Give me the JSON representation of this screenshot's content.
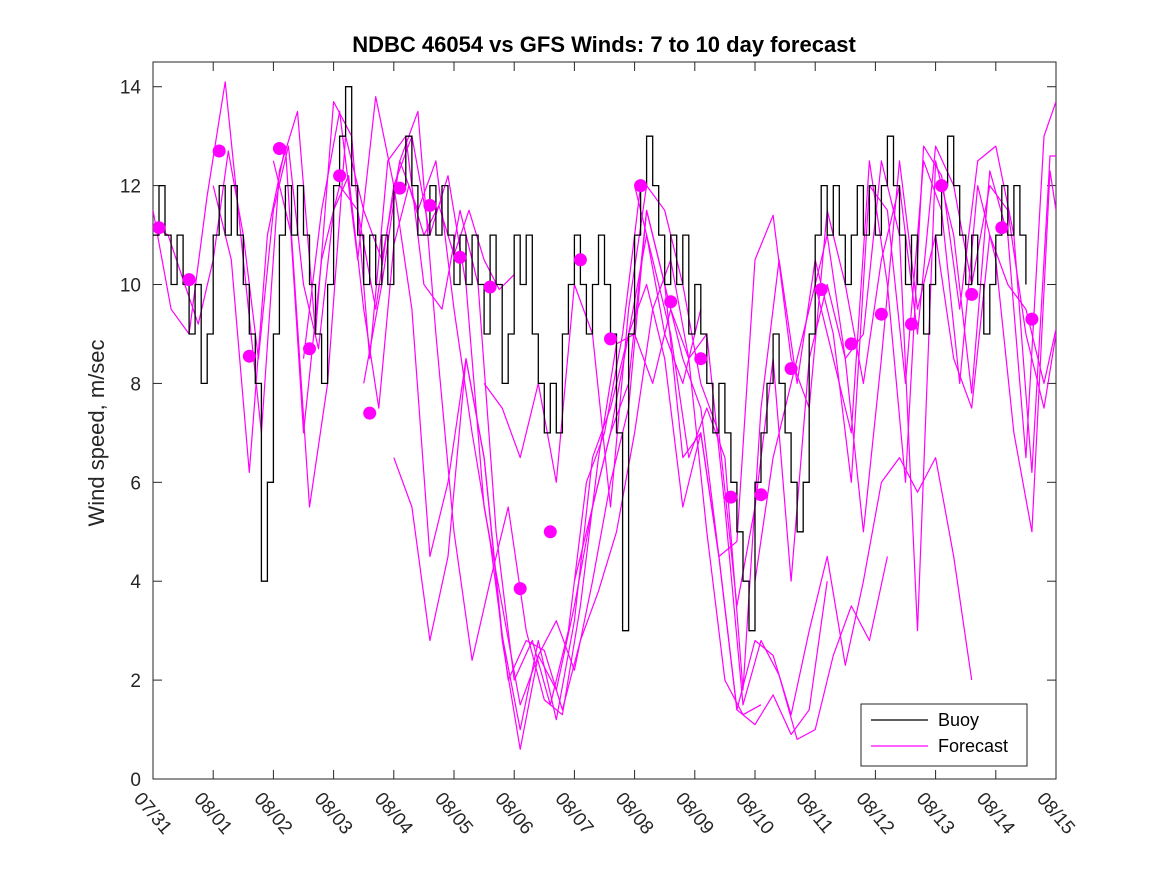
{
  "chart_data": {
    "type": "line",
    "title": "NDBC 46054 vs GFS Winds: 7 to 10 day forecast",
    "xlabel": "",
    "ylabel": "Wind speed, m/sec",
    "x_ticks": [
      "07/31",
      "08/01",
      "08/02",
      "08/03",
      "08/04",
      "08/05",
      "08/06",
      "08/07",
      "08/08",
      "08/09",
      "08/10",
      "08/11",
      "08/12",
      "08/13",
      "08/14",
      "08/15"
    ],
    "xlim": [
      "07/31",
      "08/15"
    ],
    "ylim": [
      0,
      14.5
    ],
    "y_ticks": [
      0,
      2,
      4,
      6,
      8,
      10,
      12,
      14
    ],
    "grid": false,
    "legend": {
      "position": "bottom-right",
      "entries": [
        "Buoy",
        "Forecast"
      ]
    },
    "colors": {
      "buoy": "#000000",
      "forecast": "#ff00ff"
    },
    "buoy": {
      "name": "Buoy",
      "x_days": [
        0,
        0.1,
        0.2,
        0.3,
        0.4,
        0.5,
        0.6,
        0.7,
        0.8,
        0.9,
        1.0,
        1.1,
        1.2,
        1.3,
        1.4,
        1.5,
        1.6,
        1.7,
        1.8,
        1.9,
        2.0,
        2.1,
        2.2,
        2.3,
        2.4,
        2.5,
        2.6,
        2.7,
        2.8,
        2.9,
        3.0,
        3.1,
        3.2,
        3.3,
        3.4,
        3.5,
        3.6,
        3.7,
        3.8,
        3.9,
        4.0,
        4.1,
        4.2,
        4.3,
        4.4,
        4.5,
        4.6,
        4.7,
        4.8,
        4.9,
        5.0,
        5.1,
        5.2,
        5.3,
        5.4,
        5.5,
        5.6,
        5.7,
        5.8,
        5.9,
        6.0,
        6.1,
        6.2,
        6.3,
        6.4,
        6.5,
        6.6,
        6.7,
        6.8,
        6.9,
        7.0,
        7.1,
        7.2,
        7.3,
        7.4,
        7.5,
        7.6,
        7.7,
        7.8,
        7.9,
        8.0,
        8.1,
        8.2,
        8.3,
        8.4,
        8.5,
        8.6,
        8.7,
        8.8,
        8.9,
        9.0,
        9.1,
        9.2,
        9.3,
        9.4,
        9.5,
        9.6,
        9.7,
        9.8,
        9.9,
        10.0,
        10.1,
        10.2,
        10.3,
        10.4,
        10.5,
        10.6,
        10.7,
        10.8,
        10.9,
        11.0,
        11.1,
        11.2,
        11.3,
        11.4,
        11.5,
        11.6,
        11.7,
        11.8,
        11.9,
        12.0,
        12.1,
        12.2,
        12.3,
        12.4,
        12.5,
        12.6,
        12.7,
        12.8,
        12.9,
        13.0,
        13.1,
        13.2,
        13.3,
        13.4,
        13.5,
        13.6,
        13.7,
        13.8,
        13.9,
        14.0,
        14.1,
        14.2,
        14.3,
        14.4,
        14.5,
        14.6,
        14.7,
        14.8,
        14.9,
        15.0
      ],
      "values": [
        11,
        12,
        11,
        10,
        11,
        10,
        9,
        10,
        8,
        9,
        11,
        12,
        11,
        12,
        11,
        10,
        9,
        8,
        4,
        6,
        9,
        11,
        12,
        11,
        12,
        11,
        10,
        9,
        8,
        10,
        12,
        13,
        14,
        12,
        11,
        10,
        11,
        10,
        11,
        10,
        12,
        12,
        13,
        12,
        11,
        11,
        12,
        11,
        12,
        11,
        10,
        11,
        10,
        11,
        10,
        9,
        11,
        10,
        8,
        9,
        11,
        10,
        11,
        9,
        8,
        7,
        8,
        7,
        9,
        10,
        11,
        10,
        9,
        10,
        11,
        10,
        9,
        7,
        3,
        9,
        11,
        12,
        13,
        12,
        11,
        10,
        11,
        10,
        11,
        9,
        10,
        9,
        8,
        7,
        8,
        7,
        6,
        5,
        4,
        3,
        6,
        7,
        8,
        9,
        8,
        7,
        6,
        5,
        6,
        9,
        11,
        12,
        11,
        12,
        11,
        10,
        11,
        12,
        11,
        12,
        11,
        12,
        13,
        12,
        11,
        10,
        11,
        10,
        9,
        10,
        11,
        12,
        13,
        12,
        11,
        10,
        11,
        10,
        9,
        10,
        11,
        12,
        11,
        12,
        11,
        10,
        null,
        null,
        null,
        null,
        null
      ]
    },
    "forecast_dots": {
      "x_days": [
        0.1,
        0.6,
        1.1,
        1.6,
        2.1,
        2.6,
        3.1,
        3.6,
        4.1,
        4.6,
        5.1,
        5.6,
        6.1,
        6.6,
        7.1,
        7.6,
        8.1,
        8.6,
        9.1,
        9.6,
        10.1,
        10.6,
        11.1,
        11.6,
        12.1,
        12.6,
        13.1,
        13.6,
        14.1,
        14.6
      ],
      "values": [
        11.15,
        10.1,
        12.7,
        8.55,
        12.75,
        8.7,
        12.2,
        7.4,
        11.95,
        11.6,
        10.55,
        9.95,
        3.85,
        5.0,
        10.5,
        8.9,
        12.0,
        9.65,
        8.5,
        5.7,
        5.75,
        8.3,
        9.9,
        8.8,
        9.4,
        9.2,
        12.0,
        9.8,
        11.15,
        9.3
      ]
    },
    "forecast_series": [
      {
        "x_days": [
          0,
          0.25,
          0.5,
          0.75,
          1.0,
          1.25,
          1.5,
          1.75,
          2.0,
          2.25,
          2.5,
          2.75,
          3.0,
          3.25,
          3.5,
          3.75,
          4.0,
          4.25,
          4.5,
          4.75,
          5.0,
          5.25,
          5.5,
          5.75,
          6.0
        ],
        "values": [
          11.2,
          11.0,
          10.1,
          9.2,
          10.5,
          12.7,
          11.0,
          8.5,
          11.5,
          12.8,
          10.0,
          8.7,
          11.5,
          12.2,
          9.5,
          7.5,
          10.8,
          12.0,
          11.0,
          11.6,
          10.6,
          11.5,
          10.5,
          9.9,
          10.2
        ]
      },
      {
        "x_days": [
          0,
          0.3,
          0.6,
          0.9,
          1.2,
          1.5,
          1.8,
          2.1,
          2.4,
          2.7,
          3.0,
          3.3,
          3.6,
          3.9,
          4.2,
          4.5,
          4.8,
          5.1,
          5.4,
          5.7,
          6.0,
          6.3,
          6.6,
          6.9,
          7.2,
          7.5,
          7.8,
          8.1
        ],
        "values": [
          11.5,
          9.5,
          9.0,
          11.8,
          14.1,
          10.5,
          7.0,
          12.3,
          13.5,
          9.0,
          13.7,
          13.0,
          8.5,
          12.5,
          13.0,
          10.0,
          9.5,
          11.5,
          10.0,
          5.0,
          2.0,
          2.8,
          1.5,
          3.0,
          6.0,
          7.0,
          9.0,
          12.0
        ]
      },
      {
        "x_days": [
          1.0,
          1.3,
          1.6,
          1.9,
          2.2,
          2.5,
          2.8,
          3.1,
          3.4,
          3.7,
          4.0,
          4.3,
          4.6,
          4.9,
          5.2,
          5.5,
          5.8,
          6.1,
          6.4,
          6.7,
          7.0,
          7.3,
          7.6,
          7.9,
          8.2,
          8.5,
          8.8,
          9.1
        ],
        "values": [
          12.0,
          10.5,
          6.2,
          11.0,
          12.8,
          7.0,
          10.5,
          12.0,
          11.5,
          9.5,
          12.0,
          13.0,
          11.0,
          12.2,
          10.0,
          5.5,
          3.5,
          1.5,
          2.5,
          1.8,
          3.5,
          5.5,
          7.0,
          9.0,
          11.0,
          9.0,
          8.0,
          9.5
        ]
      },
      {
        "x_days": [
          2.0,
          2.3,
          2.6,
          2.9,
          3.2,
          3.5,
          3.8,
          4.1,
          4.4,
          4.7,
          5.0,
          5.3,
          5.6,
          5.9,
          6.2,
          6.5,
          6.8,
          7.1,
          7.4,
          7.7,
          8.0,
          8.3,
          8.6,
          8.9,
          9.2,
          9.5,
          9.8,
          10.1
        ],
        "values": [
          12.5,
          11.0,
          5.5,
          8.0,
          13.0,
          11.5,
          10.5,
          12.5,
          13.5,
          9.0,
          5.0,
          2.4,
          4.0,
          5.5,
          3.0,
          1.6,
          1.3,
          3.5,
          6.5,
          8.8,
          9.0,
          8.0,
          9.5,
          8.5,
          5.0,
          2.0,
          1.3,
          1.5
        ]
      },
      {
        "x_days": [
          2.5,
          2.8,
          3.1,
          3.4,
          3.7,
          4.0,
          4.3,
          4.6,
          4.9,
          5.2,
          5.5,
          5.8,
          6.1,
          6.4,
          6.7,
          7.0,
          7.3,
          7.6,
          7.9,
          8.2,
          8.5,
          8.8,
          9.1,
          9.4,
          9.7,
          10.0,
          10.3,
          10.6,
          10.9,
          11.2
        ],
        "values": [
          8.5,
          11.5,
          13.5,
          10.5,
          13.8,
          12.0,
          9.5,
          4.5,
          6.0,
          8.5,
          6.5,
          2.8,
          0.6,
          2.5,
          3.2,
          2.2,
          4.0,
          6.0,
          7.5,
          11.5,
          10.0,
          6.5,
          7.0,
          4.5,
          1.4,
          1.1,
          1.7,
          0.9,
          1.4,
          4.0
        ]
      },
      {
        "x_days": [
          3.5,
          3.8,
          4.1,
          4.4,
          4.7,
          5.0,
          5.3,
          5.6,
          5.9,
          6.2,
          6.5,
          6.8,
          7.1,
          7.4,
          7.7,
          8.0,
          8.3,
          8.6,
          8.9,
          9.2,
          9.5,
          9.8,
          10.1,
          10.4,
          10.7,
          11.0,
          11.3,
          11.6,
          11.9,
          12.2
        ],
        "values": [
          8.0,
          10.0,
          12.5,
          11.5,
          12.5,
          9.5,
          7.0,
          4.8,
          2.0,
          2.8,
          2.6,
          1.4,
          2.8,
          3.8,
          5.0,
          7.0,
          9.5,
          10.5,
          8.5,
          9.0,
          5.5,
          1.5,
          2.8,
          2.1,
          0.8,
          1.0,
          2.5,
          3.5,
          2.8,
          4.5
        ]
      },
      {
        "x_days": [
          4.0,
          4.3,
          4.6,
          4.9,
          5.2,
          5.5,
          5.8,
          6.1,
          6.4,
          6.7,
          7.0,
          7.3,
          7.6,
          7.9,
          8.2,
          8.5,
          8.8,
          9.1,
          9.4,
          9.7,
          10.0,
          10.3,
          10.6,
          10.9,
          11.2,
          11.5,
          11.8,
          12.1,
          12.4,
          12.7,
          13.0,
          13.3,
          13.6
        ],
        "values": [
          6.5,
          5.5,
          2.8,
          4.5,
          8.5,
          6.5,
          2.9,
          1.0,
          2.8,
          1.2,
          3.2,
          6.5,
          7.5,
          9.0,
          10.0,
          8.5,
          5.5,
          7.0,
          4.5,
          1.4,
          2.8,
          2.5,
          1.3,
          3.0,
          4.5,
          2.3,
          4.0,
          6.0,
          6.5,
          5.8,
          6.5,
          4.5,
          2.0
        ]
      },
      {
        "x_days": [
          5.5,
          5.8,
          6.1,
          6.4,
          6.7,
          7.0,
          7.3,
          7.6,
          7.9,
          8.2,
          8.5,
          8.8,
          9.1,
          9.4,
          9.7,
          10.0,
          10.3,
          10.6,
          10.9,
          11.2,
          11.5,
          11.8,
          12.1,
          12.4,
          12.7,
          13.0,
          13.3,
          13.6,
          13.9,
          14.2,
          14.5,
          14.8,
          15.0
        ],
        "values": [
          8.0,
          7.5,
          6.5,
          8.0,
          6.0,
          10.0,
          9.0,
          5.5,
          9.5,
          12.0,
          11.5,
          10.0,
          8.0,
          7.0,
          3.5,
          5.5,
          8.5,
          4.0,
          8.5,
          10.0,
          8.5,
          5.0,
          8.5,
          12.5,
          9.5,
          11.0,
          8.5,
          7.5,
          11.0,
          10.0,
          9.5,
          8.0,
          9.1
        ]
      },
      {
        "x_days": [
          7.0,
          7.3,
          7.6,
          7.9,
          8.2,
          8.5,
          8.8,
          9.1,
          9.4,
          9.7,
          10.0,
          10.3,
          10.6,
          10.9,
          11.2,
          11.5,
          11.8,
          12.1,
          12.4,
          12.7,
          13.0,
          13.3,
          13.6,
          13.9,
          14.2,
          14.5,
          14.8,
          15.0
        ],
        "values": [
          4.0,
          5.5,
          7.0,
          8.0,
          11.5,
          10.0,
          8.5,
          7.5,
          4.5,
          4.8,
          10.5,
          11.4,
          8.5,
          7.5,
          11.5,
          10.0,
          8.0,
          10.5,
          12.0,
          9.0,
          12.8,
          12.0,
          10.0,
          12.0,
          11.5,
          9.0,
          7.5,
          9.0
        ]
      },
      {
        "x_days": [
          8.0,
          8.3,
          8.6,
          8.9,
          9.2,
          9.5,
          9.8,
          10.1,
          10.4,
          10.7,
          11.0,
          11.3,
          11.6,
          11.9,
          12.2,
          12.5,
          12.8,
          13.1,
          13.4,
          13.7,
          14.0,
          14.3,
          14.6,
          14.9,
          15.0
        ],
        "values": [
          12.0,
          10.5,
          9.0,
          6.5,
          7.5,
          6.5,
          1.8,
          7.5,
          10.5,
          8.0,
          10.5,
          9.0,
          6.0,
          12.0,
          11.5,
          8.0,
          12.5,
          11.5,
          8.0,
          12.0,
          10.5,
          7.0,
          5.0,
          12.3,
          11.5
        ]
      },
      {
        "x_days": [
          10.0,
          10.3,
          10.6,
          10.9,
          11.2,
          11.5,
          11.8,
          12.1,
          12.4,
          12.7,
          13.0,
          13.3,
          13.6,
          13.9,
          14.2,
          14.5,
          14.8,
          15.0
        ],
        "values": [
          4.0,
          6.5,
          8.0,
          9.5,
          11.0,
          8.5,
          9.0,
          12.5,
          11.0,
          3.0,
          12.5,
          11.0,
          7.8,
          12.3,
          11.0,
          6.5,
          13.0,
          13.7
        ]
      },
      {
        "x_days": [
          11.0,
          11.3,
          11.6,
          11.9,
          12.2,
          12.5,
          12.8,
          13.1,
          13.4,
          13.7,
          14.0,
          14.3,
          14.6,
          14.9,
          15.0
        ],
        "values": [
          10.0,
          8.5,
          7.0,
          12.5,
          10.0,
          6.0,
          12.8,
          12.2,
          9.5,
          12.5,
          12.8,
          11.0,
          6.2,
          12.6,
          12.6
        ]
      }
    ]
  }
}
